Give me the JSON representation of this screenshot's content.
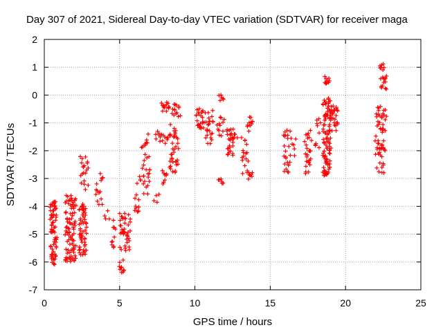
{
  "chart_data": {
    "type": "scatter",
    "title": "Day 307 of 2021, Sidereal Day-to-day VTEC variation (SDTVAR) for receiver maga",
    "xlabel": "GPS time / hours",
    "ylabel": "SDTVAR / TECUs",
    "xlim": [
      0,
      25
    ],
    "ylim": [
      -7,
      2
    ],
    "xticks": [
      0,
      5,
      10,
      15,
      20,
      25
    ],
    "yticks": [
      -7,
      -6,
      -5,
      -4,
      -3,
      -2,
      -1,
      0,
      1,
      2
    ],
    "grid": true,
    "marker": "+",
    "color": "#ff0000",
    "clusters": [
      {
        "x0": 0.4,
        "x1": 0.8,
        "ymin": -6.1,
        "ymax": -3.8,
        "n": 70
      },
      {
        "x0": 1.4,
        "x1": 2.1,
        "ymin": -6.0,
        "ymax": -3.6,
        "n": 90
      },
      {
        "x0": 2.3,
        "x1": 2.8,
        "ymin": -5.8,
        "ymax": -3.9,
        "n": 60
      },
      {
        "x0": 2.4,
        "x1": 2.9,
        "ymin": -3.4,
        "ymax": -2.2,
        "n": 20
      },
      {
        "x0": 3.4,
        "x1": 3.9,
        "ymin": -4.0,
        "ymax": -2.8,
        "n": 14
      },
      {
        "x0": 4.0,
        "x1": 4.3,
        "ymin": -4.5,
        "ymax": -3.9,
        "n": 4
      },
      {
        "x0": 4.5,
        "x1": 4.7,
        "ymin": -5.6,
        "ymax": -4.4,
        "n": 10
      },
      {
        "x0": 5.0,
        "x1": 5.3,
        "ymin": -6.4,
        "ymax": -5.9,
        "n": 10
      },
      {
        "x0": 5.0,
        "x1": 5.7,
        "ymin": -5.6,
        "ymax": -4.2,
        "n": 40
      },
      {
        "x0": 6.0,
        "x1": 6.4,
        "ymin": -4.2,
        "ymax": -2.9,
        "n": 14
      },
      {
        "x0": 6.5,
        "x1": 7.0,
        "ymin": -3.6,
        "ymax": -1.4,
        "n": 30
      },
      {
        "x0": 7.3,
        "x1": 7.6,
        "ymin": -3.9,
        "ymax": -3.5,
        "n": 4
      },
      {
        "x0": 7.4,
        "x1": 7.7,
        "ymin": -1.7,
        "ymax": -1.3,
        "n": 6
      },
      {
        "x0": 7.8,
        "x1": 8.1,
        "ymin": -3.2,
        "ymax": -2.7,
        "n": 8
      },
      {
        "x0": 7.7,
        "x1": 8.3,
        "ymin": -1.8,
        "ymax": -1.4,
        "n": 10
      },
      {
        "x0": 7.8,
        "x1": 8.3,
        "ymin": -0.6,
        "ymax": -0.2,
        "n": 14
      },
      {
        "x0": 8.3,
        "x1": 8.9,
        "ymin": -2.8,
        "ymax": -1.0,
        "n": 36
      },
      {
        "x0": 8.5,
        "x1": 9.0,
        "ymin": -0.8,
        "ymax": -0.3,
        "n": 14
      },
      {
        "x0": 10.1,
        "x1": 10.6,
        "ymin": -1.2,
        "ymax": -0.4,
        "n": 24
      },
      {
        "x0": 10.7,
        "x1": 11.2,
        "ymin": -1.8,
        "ymax": -0.5,
        "n": 24
      },
      {
        "x0": 11.6,
        "x1": 11.9,
        "ymin": -0.2,
        "ymax": 0.05,
        "n": 6
      },
      {
        "x0": 11.6,
        "x1": 11.9,
        "ymin": -3.2,
        "ymax": -3.0,
        "n": 6
      },
      {
        "x0": 11.5,
        "x1": 11.9,
        "ymin": -1.5,
        "ymax": -0.7,
        "n": 12
      },
      {
        "x0": 12.1,
        "x1": 12.6,
        "ymin": -2.2,
        "ymax": -1.2,
        "n": 28
      },
      {
        "x0": 12.5,
        "x1": 12.8,
        "ymin": -1.8,
        "ymax": -1.2,
        "n": 4
      },
      {
        "x0": 13.1,
        "x1": 13.5,
        "ymin": -2.9,
        "ymax": -1.4,
        "n": 16
      },
      {
        "x0": 13.5,
        "x1": 13.8,
        "ymin": -3.1,
        "ymax": -2.7,
        "n": 8
      },
      {
        "x0": 13.5,
        "x1": 13.8,
        "ymin": -1.3,
        "ymax": -0.7,
        "n": 10
      },
      {
        "x0": 15.9,
        "x1": 16.3,
        "ymin": -2.9,
        "ymax": -1.2,
        "n": 24
      },
      {
        "x0": 16.4,
        "x1": 16.7,
        "ymin": -2.3,
        "ymax": -1.3,
        "n": 6
      },
      {
        "x0": 17.3,
        "x1": 17.7,
        "ymin": -2.9,
        "ymax": -1.2,
        "n": 28
      },
      {
        "x0": 18.0,
        "x1": 18.3,
        "ymin": -1.9,
        "ymax": -0.6,
        "n": 10
      },
      {
        "x0": 18.5,
        "x1": 19.0,
        "ymin": -2.9,
        "ymax": -0.1,
        "n": 90
      },
      {
        "x0": 18.6,
        "x1": 18.9,
        "ymin": 0.4,
        "ymax": 0.7,
        "n": 10
      },
      {
        "x0": 18.9,
        "x1": 19.5,
        "ymin": -1.3,
        "ymax": -0.3,
        "n": 30
      },
      {
        "x0": 22.0,
        "x1": 22.6,
        "ymin": -2.8,
        "ymax": -0.2,
        "n": 50
      },
      {
        "x0": 22.3,
        "x1": 22.7,
        "ymin": 0.2,
        "ymax": 1.25,
        "n": 20
      },
      {
        "x0": 22.4,
        "x1": 22.7,
        "ymin": -1.3,
        "ymax": -0.7,
        "n": 8
      }
    ]
  }
}
